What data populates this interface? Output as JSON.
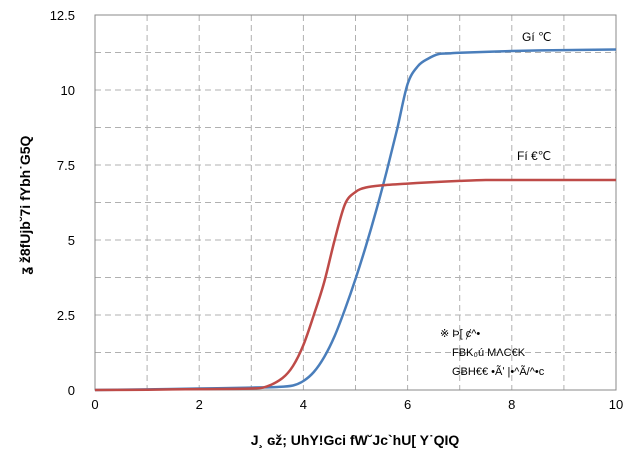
{
  "chart_data": {
    "type": "line",
    "xlabel": "J¸ ɢž; UhY!Gci fW˘Jc`hU[ Y˙QIQ",
    "ylabel": "ʓ ž8fUjb˘7i fYbh˙G5Q",
    "xlim": [
      0,
      10
    ],
    "ylim": [
      0,
      12.5
    ],
    "x_ticks": [
      "0",
      "2",
      "4",
      "6",
      "8",
      "10"
    ],
    "y_ticks": [
      "0",
      "2.5",
      "5",
      "7.5",
      "10",
      "12.5"
    ],
    "grid": true,
    "series": [
      {
        "name": "Gí ℃",
        "color": "#4a7ebb",
        "points": [
          [
            0,
            0
          ],
          [
            1,
            0.02
          ],
          [
            2,
            0.05
          ],
          [
            3,
            0.08
          ],
          [
            3.5,
            0.1
          ],
          [
            3.8,
            0.15
          ],
          [
            4.0,
            0.3
          ],
          [
            4.2,
            0.6
          ],
          [
            4.4,
            1.1
          ],
          [
            4.6,
            1.8
          ],
          [
            4.8,
            2.7
          ],
          [
            5.0,
            3.7
          ],
          [
            5.2,
            4.8
          ],
          [
            5.4,
            6.0
          ],
          [
            5.6,
            7.3
          ],
          [
            5.8,
            8.7
          ],
          [
            6.0,
            10.2
          ],
          [
            6.2,
            10.8
          ],
          [
            6.4,
            11.05
          ],
          [
            6.6,
            11.2
          ],
          [
            6.8,
            11.22
          ],
          [
            7.0,
            11.24
          ],
          [
            8.0,
            11.3
          ],
          [
            9.0,
            11.33
          ],
          [
            10,
            11.35
          ]
        ]
      },
      {
        "name": "Fí €℃",
        "color": "#be4b48",
        "points": [
          [
            0,
            0
          ],
          [
            1,
            0.01
          ],
          [
            2,
            0.03
          ],
          [
            3.0,
            0.05
          ],
          [
            3.3,
            0.12
          ],
          [
            3.6,
            0.4
          ],
          [
            3.8,
            0.8
          ],
          [
            4.0,
            1.5
          ],
          [
            4.2,
            2.5
          ],
          [
            4.4,
            3.6
          ],
          [
            4.6,
            5.0
          ],
          [
            4.8,
            6.2
          ],
          [
            5.0,
            6.6
          ],
          [
            5.2,
            6.75
          ],
          [
            5.5,
            6.82
          ],
          [
            6.0,
            6.88
          ],
          [
            6.5,
            6.93
          ],
          [
            7.0,
            6.97
          ],
          [
            7.5,
            7.0
          ],
          [
            8.0,
            7.0
          ],
          [
            9.0,
            7.0
          ],
          [
            10,
            7.0
          ]
        ]
      }
    ]
  },
  "labels": {
    "series1": "Gí ℃",
    "series2": "Fí €℃",
    "note_line1": "※ Þ[ ȼ^•",
    "note_line2": "FɃK₀ú MɅC€K",
    "note_line3": "GɃH€€ •Ãʹ |•^Ã/^•c"
  }
}
